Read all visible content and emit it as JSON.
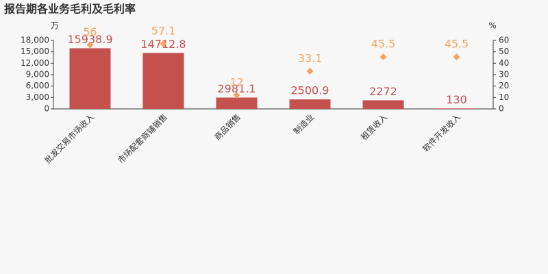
{
  "chart_data": {
    "type": "bar",
    "title": "报告期各业务毛利及毛利率",
    "y_label": "万",
    "y2_label": "%",
    "categories": [
      "批发交易市场收入",
      "市场配套商铺销售",
      "商品销售",
      "制造业",
      "租赁收入",
      "软件开发收入"
    ],
    "series": [
      {
        "type": "bar",
        "color": "#c4514e",
        "values": [
          15938.9,
          14712.8,
          2981.1,
          2500.9,
          2272,
          130
        ]
      },
      {
        "type": "scatter",
        "axis": "y2",
        "color": "#f4a460",
        "values": [
          56,
          57.1,
          12,
          33.1,
          45.5,
          45.5
        ]
      }
    ],
    "ylim": [
      0,
      18000
    ],
    "yticks": [
      0,
      {
        "value": 3000,
        "label": "3,000"
      },
      {
        "value": 6000,
        "label": "6,000"
      },
      {
        "value": 9000,
        "label": "9,000"
      },
      {
        "value": 12000,
        "label": "12,000"
      },
      {
        "value": 15000,
        "label": "15,000"
      },
      {
        "value": 18000,
        "label": "18,000"
      }
    ],
    "y2lim": [
      0,
      60
    ],
    "y2ticks": [
      0,
      10,
      20,
      30,
      40,
      50,
      60
    ]
  }
}
